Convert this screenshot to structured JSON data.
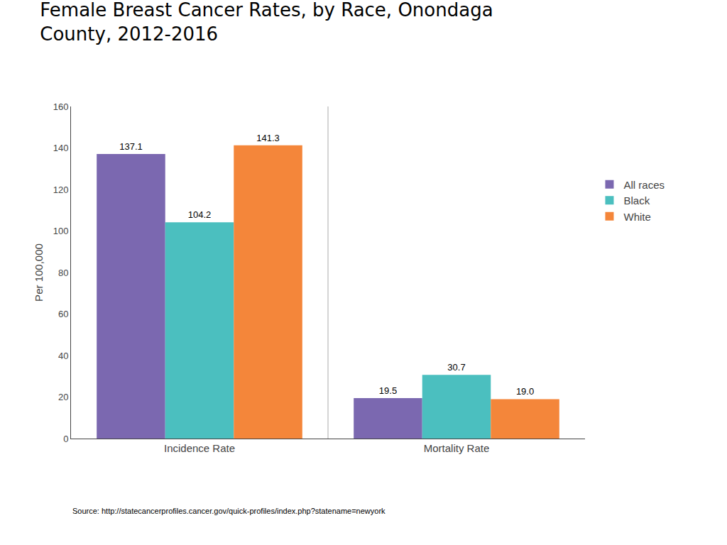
{
  "chart_data": {
    "type": "bar",
    "title": "Female Breast Cancer Rates, by Race, Onondaga\nCounty, 2012-2016",
    "ylabel": "Per 100,000",
    "categories": [
      "Incidence Rate",
      "Mortality Rate"
    ],
    "series": [
      {
        "name": "All races",
        "color": "#7B68B0",
        "values": [
          137.1,
          19.5
        ],
        "value_labels": [
          "137.1",
          "19.5"
        ]
      },
      {
        "name": "Black",
        "color": "#4BBFBF",
        "values": [
          104.2,
          30.7
        ],
        "value_labels": [
          "104.2",
          "30.7"
        ]
      },
      {
        "name": "White",
        "color": "#F4863A",
        "values": [
          141.3,
          19.0
        ],
        "value_labels": [
          "141.3",
          "19.0"
        ]
      }
    ],
    "ylim": [
      0,
      160
    ],
    "yticks": [
      0,
      20,
      40,
      60,
      80,
      100,
      120,
      140,
      160
    ],
    "grid": false,
    "legend": "right",
    "data_labels": true,
    "annotations": [
      "Source: http://statecancerprofiles.cancer.gov/quick-profiles/index.php?statename=newyork"
    ]
  }
}
